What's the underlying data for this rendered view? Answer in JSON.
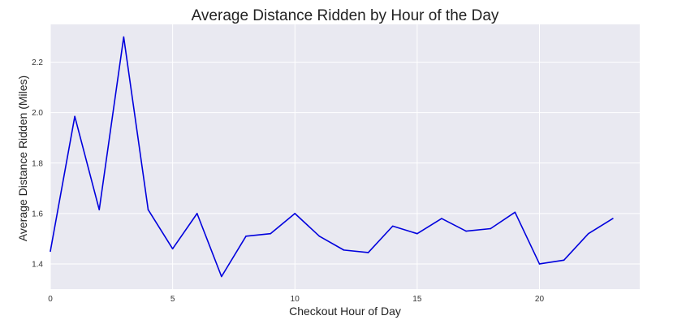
{
  "chart_data": {
    "type": "line",
    "title": "Average Distance Ridden by Hour of the Day",
    "xlabel": "Checkout Hour of Day",
    "ylabel": "Average Distance Ridden (Miles)",
    "xlim": [
      0,
      24.1
    ],
    "ylim": [
      1.3,
      2.35
    ],
    "xticks": [
      0,
      5,
      10,
      15,
      20
    ],
    "xtick_labels": [
      "0",
      "5",
      "10",
      "15",
      "20"
    ],
    "yticks": [
      1.4,
      1.6,
      1.8,
      2.0,
      2.2
    ],
    "ytick_labels": [
      "1.4",
      "1.6",
      "1.8",
      "2.0",
      "2.2"
    ],
    "grid": true,
    "background": "#e9e9f1",
    "grid_color": "#ffffff",
    "line_color": "#0000dd",
    "series": [
      {
        "x": [
          0,
          1,
          2,
          3,
          4,
          5,
          6,
          7,
          8,
          9,
          10,
          11,
          12,
          13,
          14,
          15,
          16,
          17,
          18,
          19,
          20,
          21,
          22,
          23
        ],
        "values": [
          1.45,
          1.985,
          1.615,
          2.3,
          1.615,
          1.46,
          1.6,
          1.35,
          1.51,
          1.52,
          1.6,
          1.51,
          1.455,
          1.445,
          1.55,
          1.52,
          1.58,
          1.53,
          1.54,
          1.605,
          1.4,
          1.415,
          1.52,
          1.58
        ]
      }
    ]
  }
}
